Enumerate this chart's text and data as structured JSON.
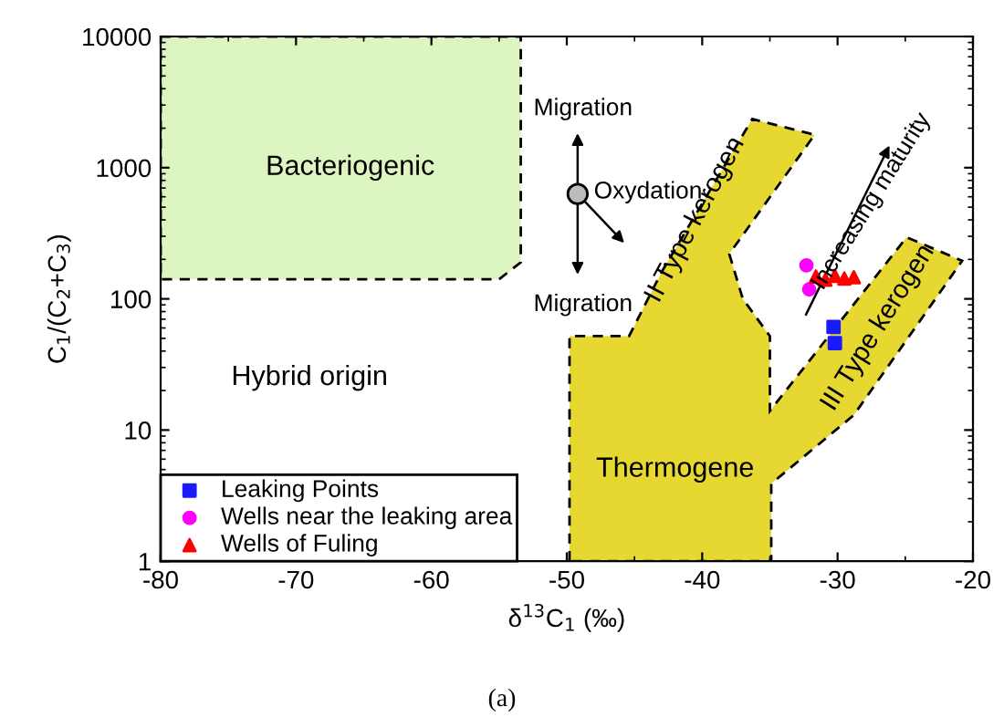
{
  "chart_data": {
    "type": "scatter",
    "xlabel": "δ$^{13}$C$_{1}$ (‰)",
    "ylabel": "C$_{1}$/(C$_{2}$+C$_{3}$)",
    "log": "y",
    "xlim": [
      -80,
      -20
    ],
    "xticks": [
      -80,
      -70,
      -60,
      -50,
      -40,
      -30,
      -20
    ],
    "ylim": [
      1,
      10000
    ],
    "yticks": [
      1,
      10,
      100,
      1000,
      10000
    ],
    "grid": false,
    "legend": "bottom left",
    "series": [
      {
        "name": "Leaking Points",
        "color": "#1a1aff",
        "marker": "square",
        "x": [
          -30.3,
          -30.2
        ],
        "values": [
          61,
          46
        ]
      },
      {
        "name": "Wells near the leaking area",
        "color": "#ff00ff",
        "marker": "circle",
        "x": [
          -32.3,
          -32.1
        ],
        "values": [
          180,
          118
        ]
      },
      {
        "name": "Wells of Fuling",
        "color": "#ff0000",
        "marker": "triangle",
        "x": [
          -31.6,
          -30.9,
          -30.2,
          -29.5,
          -28.8
        ],
        "values": [
          148,
          140,
          150,
          143,
          146
        ]
      }
    ],
    "annotations": [
      "Bacteriogenic",
      "Hybrid origin",
      "Thermogene",
      "II Type kerogen",
      "III Type kerogen",
      "Increasing maturity",
      "Migration",
      "Migration",
      "Oxydation",
      "(a)"
    ]
  }
}
